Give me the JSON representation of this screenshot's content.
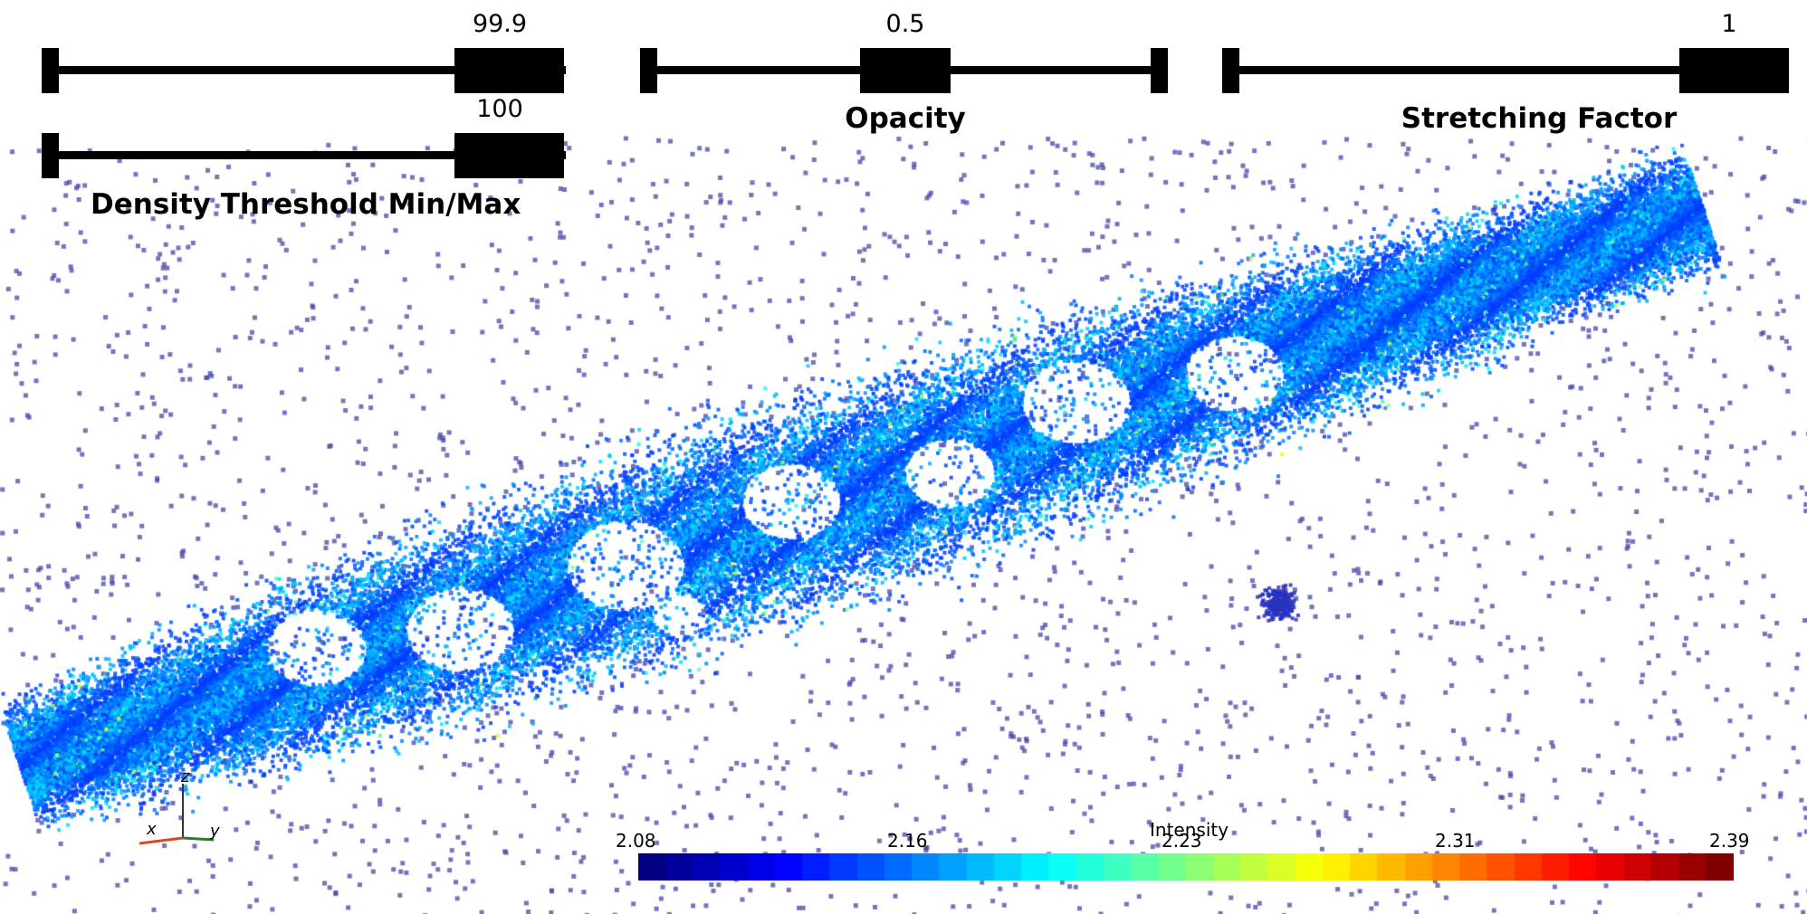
{
  "sliders": {
    "density_min": {
      "value": "99.9",
      "position": 0.999
    },
    "density_max": {
      "value": "100",
      "position": 1.0
    },
    "density_title": "Density Threshold Min/Max",
    "opacity": {
      "value": "0.5",
      "position": 0.5,
      "title": "Opacity"
    },
    "stretching": {
      "value": "1",
      "position": 1.0,
      "title": "Stretching Factor"
    }
  },
  "colorbar": {
    "title": "Intensity",
    "ticks": [
      "2.08",
      "2.16",
      "2.23",
      "2.31",
      "2.39"
    ],
    "range": [
      2.08,
      2.39
    ]
  },
  "axes": {
    "x": "x",
    "y": "y",
    "z": "z"
  },
  "colors": {
    "low": "#00007f",
    "mid": "#7fff7f",
    "high": "#7f0000",
    "points": "#1c3fd6",
    "scatter": "#5a5ab0"
  }
}
